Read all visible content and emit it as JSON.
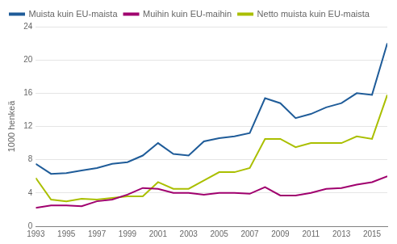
{
  "chart_data": {
    "type": "line",
    "y_label": "1000 henkeä",
    "x": [
      1993,
      1994,
      1995,
      1996,
      1997,
      1998,
      1999,
      2000,
      2001,
      2002,
      2003,
      2004,
      2005,
      2006,
      2007,
      2008,
      2009,
      2010,
      2011,
      2012,
      2013,
      2014,
      2015,
      2016
    ],
    "series": [
      {
        "name": "Muista kuin EU-maista",
        "color": "#1F5C99",
        "values": [
          7.5,
          6.3,
          6.4,
          6.7,
          7.0,
          7.5,
          7.7,
          8.5,
          10.0,
          8.7,
          8.5,
          10.2,
          10.6,
          10.8,
          11.2,
          15.4,
          14.8,
          13.0,
          13.5,
          14.3,
          14.8,
          16.0,
          15.8,
          22.0
        ]
      },
      {
        "name": "Muihin kuin EU-maihin",
        "color": "#A0006E",
        "values": [
          2.2,
          2.5,
          2.5,
          2.4,
          3.0,
          3.2,
          3.8,
          4.6,
          4.5,
          4.0,
          4.0,
          3.8,
          4.0,
          4.0,
          3.9,
          4.7,
          3.7,
          3.7,
          4.0,
          4.5,
          4.6,
          5.0,
          5.3,
          6.0
        ]
      },
      {
        "name": "Netto muista kuin EU-maista",
        "color": "#AABF00",
        "values": [
          5.8,
          3.2,
          3.0,
          3.3,
          3.2,
          3.4,
          3.6,
          3.6,
          5.3,
          4.5,
          4.5,
          5.5,
          6.5,
          6.5,
          7.0,
          10.5,
          10.5,
          9.5,
          10.0,
          10.0,
          10.0,
          10.8,
          10.5,
          15.8
        ]
      }
    ],
    "xlim": [
      1993,
      2016
    ],
    "xticks": [
      1993,
      1995,
      1997,
      1999,
      2001,
      2003,
      2005,
      2007,
      2009,
      2011,
      2013,
      2015
    ],
    "ylim": [
      0,
      24
    ],
    "yticks": [
      0,
      4,
      8,
      12,
      16,
      20,
      24
    ],
    "grid": "y",
    "legend": "upper left"
  }
}
